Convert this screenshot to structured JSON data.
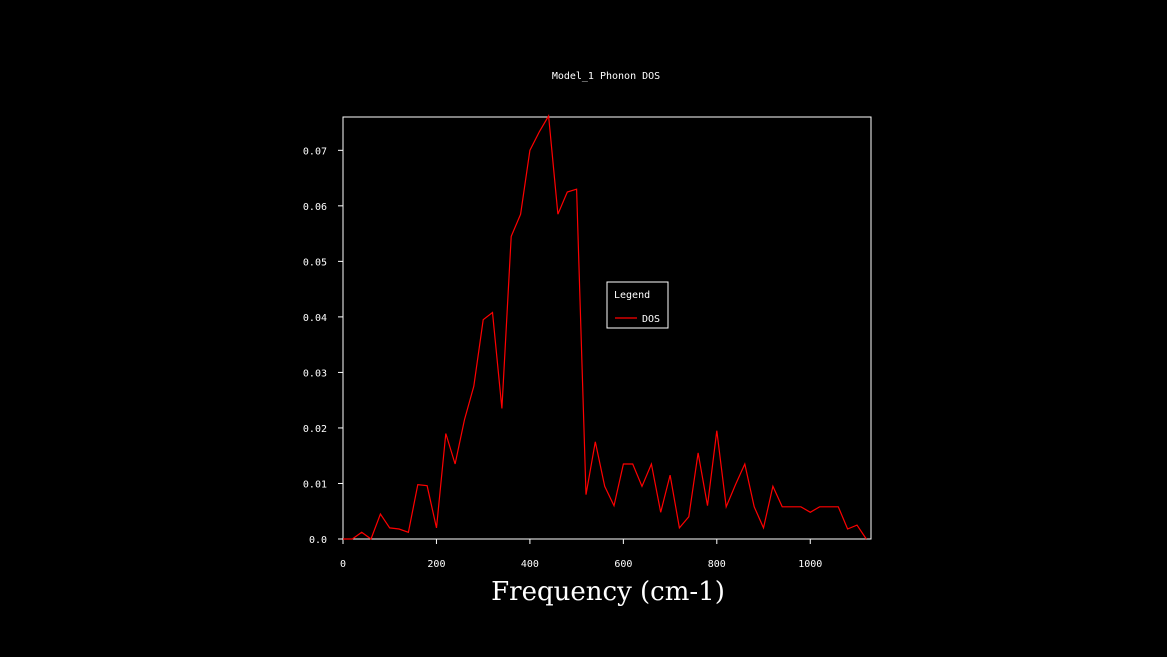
{
  "chart_data": {
    "type": "line",
    "title": "Model_1 Phonon DOS",
    "xlabel": "Frequency (cm-1)",
    "ylabel": "",
    "xlim": [
      0,
      1130
    ],
    "ylim": [
      0,
      0.076
    ],
    "x_ticks": [
      "0",
      "200",
      "400",
      "600",
      "800",
      "1000"
    ],
    "x_tick_values": [
      0,
      200,
      400,
      600,
      800,
      1000
    ],
    "y_ticks": [
      "0.0",
      "0.01",
      "0.02",
      "0.03",
      "0.04",
      "0.05",
      "0.06",
      "0.07"
    ],
    "y_tick_values": [
      0,
      0.01,
      0.02,
      0.03,
      0.04,
      0.05,
      0.06,
      0.07
    ],
    "legend": {
      "title": "Legend",
      "placement": "center-right"
    },
    "series": [
      {
        "name": "DOS",
        "color": "#ff0000",
        "x": [
          0,
          20,
          40,
          60,
          80,
          100,
          120,
          140,
          160,
          180,
          200,
          220,
          240,
          260,
          280,
          300,
          320,
          340,
          360,
          380,
          400,
          420,
          440,
          460,
          480,
          500,
          520,
          540,
          560,
          580,
          600,
          620,
          640,
          660,
          680,
          700,
          720,
          740,
          760,
          780,
          800,
          820,
          840,
          860,
          880,
          900,
          920,
          940,
          960,
          980,
          1000,
          1020,
          1040,
          1060,
          1080,
          1100,
          1120
        ],
        "y": [
          0.0,
          0.0,
          0.0012,
          0.0,
          0.0045,
          0.002,
          0.0018,
          0.0012,
          0.0098,
          0.0096,
          0.002,
          0.019,
          0.0135,
          0.0215,
          0.0275,
          0.0395,
          0.0408,
          0.0235,
          0.0545,
          0.0585,
          0.07,
          0.0733,
          0.0762,
          0.0585,
          0.0625,
          0.063,
          0.008,
          0.0175,
          0.0095,
          0.006,
          0.0135,
          0.0135,
          0.0095,
          0.0135,
          0.0048,
          0.0115,
          0.002,
          0.004,
          0.0155,
          0.006,
          0.0195,
          0.0058,
          0.0098,
          0.0135,
          0.0058,
          0.002,
          0.0095,
          0.0058,
          0.0058,
          0.0058,
          0.0048,
          0.0058,
          0.0058,
          0.0058,
          0.0018,
          0.0025,
          0.0
        ]
      }
    ]
  }
}
